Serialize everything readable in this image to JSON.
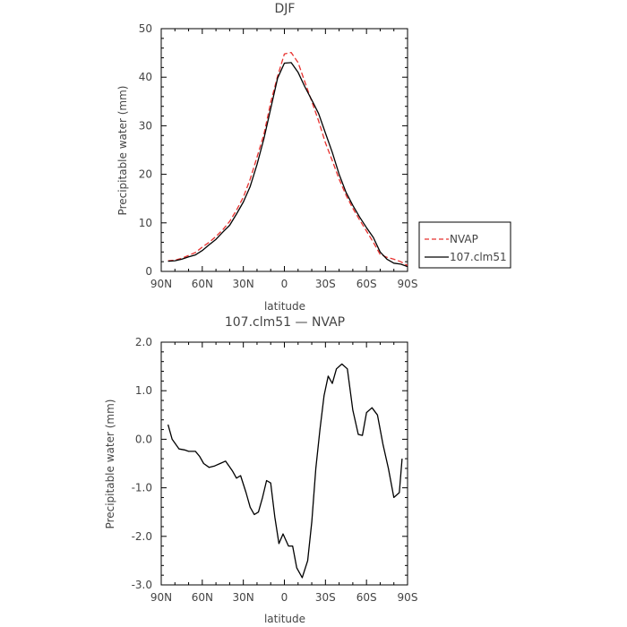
{
  "chart_data": [
    {
      "type": "line",
      "title": "DJF",
      "xlabel": "latitude",
      "ylabel": "Precipitable water (mm)",
      "xlim": [
        90,
        -90
      ],
      "ylim": [
        0,
        50
      ],
      "xticks": [
        90,
        60,
        30,
        0,
        -30,
        -60,
        -90
      ],
      "xtick_labels": [
        "90N",
        "60N",
        "30N",
        "0",
        "30S",
        "60S",
        "90S"
      ],
      "yticks": [
        0,
        10,
        20,
        30,
        40,
        50
      ],
      "ytick_labels": [
        "0",
        "10",
        "20",
        "30",
        "40",
        "50"
      ],
      "grid": false,
      "legend_position": "right",
      "series": [
        {
          "name": "NVAP",
          "color": "#e8312f",
          "dash": "dashed",
          "x": [
            85,
            80,
            75,
            70,
            65,
            60,
            55,
            50,
            45,
            40,
            35,
            30,
            25,
            20,
            15,
            10,
            5,
            0,
            -5,
            -10,
            -15,
            -20,
            -25,
            -30,
            -35,
            -40,
            -45,
            -50,
            -55,
            -60,
            -65,
            -70,
            -75,
            -80,
            -85,
            -90
          ],
          "y": [
            2.2,
            2.3,
            2.7,
            3.3,
            3.9,
            5.0,
            6.0,
            7.2,
            8.6,
            10.3,
            12.6,
            15.3,
            19.0,
            23.5,
            28.2,
            34.8,
            40.2,
            44.8,
            45.1,
            43.0,
            39.0,
            35.0,
            31.0,
            26.5,
            22.8,
            19.0,
            15.7,
            13.0,
            10.6,
            8.3,
            6.0,
            3.5,
            2.9,
            2.5,
            2.0,
            1.2
          ]
        },
        {
          "name": "107.clm51",
          "color": "#000000",
          "dash": "solid",
          "x": [
            85,
            80,
            75,
            70,
            65,
            60,
            55,
            50,
            45,
            40,
            35,
            30,
            25,
            20,
            15,
            10,
            5,
            0,
            -5,
            -10,
            -15,
            -20,
            -25,
            -30,
            -35,
            -40,
            -45,
            -50,
            -55,
            -60,
            -65,
            -70,
            -75,
            -80,
            -85,
            -90
          ],
          "y": [
            2.1,
            2.2,
            2.5,
            3.0,
            3.4,
            4.3,
            5.5,
            6.6,
            8.1,
            9.5,
            11.8,
            14.3,
            17.5,
            22.0,
            27.3,
            33.5,
            39.8,
            42.9,
            43.0,
            41.0,
            38.0,
            35.3,
            32.5,
            28.5,
            24.5,
            20.0,
            16.3,
            13.6,
            11.2,
            9.0,
            7.0,
            4.0,
            2.5,
            1.7,
            1.5,
            1.0
          ]
        }
      ]
    },
    {
      "type": "line",
      "title": "107.clm51 — NVAP",
      "xlabel": "latitude",
      "ylabel": "Precipitable water (mm)",
      "xlim": [
        90,
        -90
      ],
      "ylim": [
        -3.0,
        2.0
      ],
      "xticks": [
        90,
        60,
        30,
        0,
        -30,
        -60,
        -90
      ],
      "xtick_labels": [
        "90N",
        "60N",
        "30N",
        "0",
        "30S",
        "60S",
        "90S"
      ],
      "yticks": [
        -3.0,
        -2.0,
        -1.0,
        0.0,
        1.0,
        2.0
      ],
      "ytick_labels": [
        "-3.0",
        "-2.0",
        "-1.0",
        "0.0",
        "1.0",
        "2.0"
      ],
      "grid": false,
      "series": [
        {
          "color": "#000000",
          "dash": "solid",
          "x": [
            85,
            82,
            77,
            73,
            70,
            65,
            62,
            59,
            55,
            51,
            47,
            43,
            38,
            35,
            32,
            28,
            25,
            22,
            19,
            16,
            13,
            10,
            7,
            4,
            1,
            -3,
            -6,
            -9,
            -13,
            -17,
            -20,
            -23,
            -26,
            -29,
            -32,
            -35,
            -38,
            -42,
            -46,
            -50,
            -54,
            -57,
            -60,
            -64,
            -68,
            -72,
            -76,
            -80,
            -84,
            -86
          ],
          "y": [
            0.3,
            0.0,
            -0.2,
            -0.22,
            -0.25,
            -0.25,
            -0.35,
            -0.5,
            -0.58,
            -0.55,
            -0.5,
            -0.45,
            -0.65,
            -0.8,
            -0.75,
            -1.1,
            -1.4,
            -1.55,
            -1.5,
            -1.2,
            -0.85,
            -0.9,
            -1.6,
            -2.15,
            -1.95,
            -2.2,
            -2.2,
            -2.65,
            -2.85,
            -2.5,
            -1.7,
            -0.6,
            0.2,
            0.9,
            1.3,
            1.15,
            1.45,
            1.55,
            1.45,
            0.6,
            0.1,
            0.08,
            0.55,
            0.65,
            0.5,
            -0.1,
            -0.6,
            -1.2,
            -1.1,
            -0.4
          ]
        }
      ]
    }
  ]
}
